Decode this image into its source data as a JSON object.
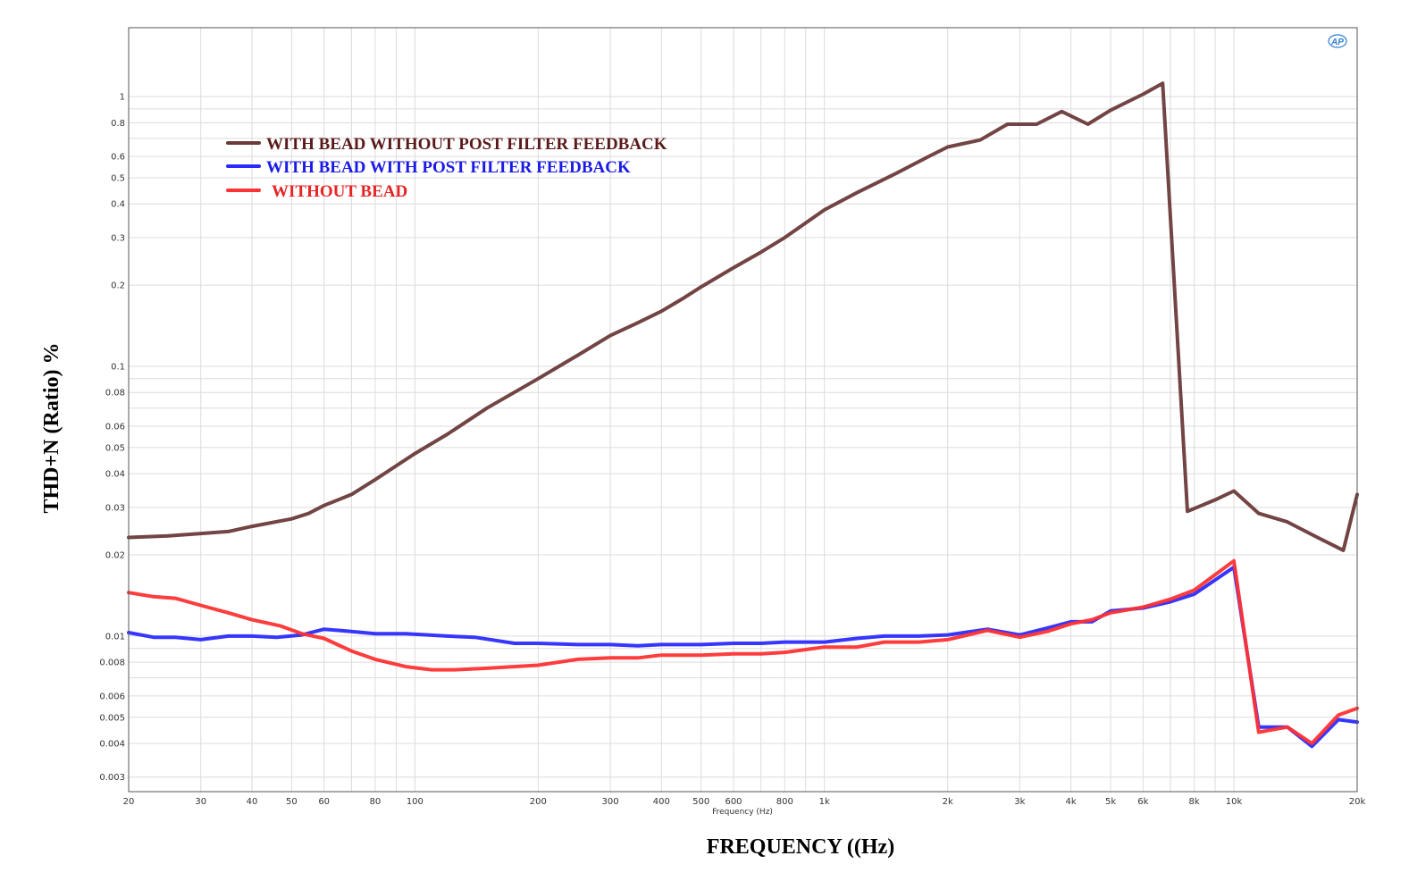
{
  "chart_data": {
    "type": "line",
    "title": "",
    "xlabel": "FREQUENCY ((Hz)",
    "x_unit_label": "Frequency (Hz)",
    "ylabel": "THD+N (Ratio) %",
    "xscale": "log",
    "yscale": "log",
    "xlim": [
      20,
      20000
    ],
    "ylim": [
      0.00265,
      1.8
    ],
    "grid": true,
    "legend_position": "top-left",
    "x_ticks": [
      {
        "value": 20,
        "label": "20"
      },
      {
        "value": 30,
        "label": "30"
      },
      {
        "value": 40,
        "label": "40"
      },
      {
        "value": 50,
        "label": "50"
      },
      {
        "value": 60,
        "label": "60"
      },
      {
        "value": 80,
        "label": "80"
      },
      {
        "value": 100,
        "label": "100"
      },
      {
        "value": 200,
        "label": "200"
      },
      {
        "value": 300,
        "label": "300"
      },
      {
        "value": 400,
        "label": "400"
      },
      {
        "value": 500,
        "label": "500"
      },
      {
        "value": 600,
        "label": "600"
      },
      {
        "value": 800,
        "label": "800"
      },
      {
        "value": 1000,
        "label": "1k"
      },
      {
        "value": 2000,
        "label": "2k"
      },
      {
        "value": 3000,
        "label": "3k"
      },
      {
        "value": 4000,
        "label": "4k"
      },
      {
        "value": 5000,
        "label": "5k"
      },
      {
        "value": 6000,
        "label": "6k"
      },
      {
        "value": 8000,
        "label": "8k"
      },
      {
        "value": 10000,
        "label": "10k"
      },
      {
        "value": 20000,
        "label": "20k"
      }
    ],
    "y_ticks": [
      {
        "value": 1,
        "label": "1"
      },
      {
        "value": 0.8,
        "label": "0.8"
      },
      {
        "value": 0.6,
        "label": "0.6"
      },
      {
        "value": 0.5,
        "label": "0.5"
      },
      {
        "value": 0.4,
        "label": "0.4"
      },
      {
        "value": 0.3,
        "label": "0.3"
      },
      {
        "value": 0.2,
        "label": "0.2"
      },
      {
        "value": 0.1,
        "label": "0.1"
      },
      {
        "value": 0.08,
        "label": "0.08"
      },
      {
        "value": 0.06,
        "label": "0.06"
      },
      {
        "value": 0.05,
        "label": "0.05"
      },
      {
        "value": 0.04,
        "label": "0.04"
      },
      {
        "value": 0.03,
        "label": "0.03"
      },
      {
        "value": 0.02,
        "label": "0.02"
      },
      {
        "value": 0.01,
        "label": "0.01"
      },
      {
        "value": 0.008,
        "label": "0.008"
      },
      {
        "value": 0.006,
        "label": "0.006"
      },
      {
        "value": 0.005,
        "label": "0.005"
      },
      {
        "value": 0.004,
        "label": "0.004"
      },
      {
        "value": 0.003,
        "label": "0.003"
      }
    ],
    "series": [
      {
        "name": "WITH BEAD WITHOUT POST FILTER FEEDBACK",
        "color": "#6b3a3a",
        "legend_color": "#5a1a1a",
        "points": [
          [
            20,
            0.0232
          ],
          [
            25,
            0.0235
          ],
          [
            30,
            0.024
          ],
          [
            35,
            0.0244
          ],
          [
            40,
            0.0255
          ],
          [
            50,
            0.0272
          ],
          [
            55,
            0.0285
          ],
          [
            60,
            0.0305
          ],
          [
            70,
            0.0335
          ],
          [
            80,
            0.038
          ],
          [
            100,
            0.0475
          ],
          [
            120,
            0.056
          ],
          [
            150,
            0.07
          ],
          [
            200,
            0.09
          ],
          [
            250,
            0.11
          ],
          [
            300,
            0.13
          ],
          [
            350,
            0.145
          ],
          [
            400,
            0.16
          ],
          [
            450,
            0.178
          ],
          [
            500,
            0.197
          ],
          [
            600,
            0.232
          ],
          [
            700,
            0.265
          ],
          [
            800,
            0.3
          ],
          [
            1000,
            0.38
          ],
          [
            1200,
            0.44
          ],
          [
            1500,
            0.52
          ],
          [
            1800,
            0.6
          ],
          [
            2000,
            0.65
          ],
          [
            2400,
            0.69
          ],
          [
            2800,
            0.79
          ],
          [
            3300,
            0.79
          ],
          [
            3800,
            0.88
          ],
          [
            4400,
            0.79
          ],
          [
            5000,
            0.89
          ],
          [
            6000,
            1.02
          ],
          [
            6700,
            1.12
          ],
          [
            7700,
            0.029
          ],
          [
            9000,
            0.032
          ],
          [
            10000,
            0.0345
          ],
          [
            11500,
            0.0285
          ],
          [
            13500,
            0.0265
          ],
          [
            16000,
            0.0232
          ],
          [
            18500,
            0.0208
          ],
          [
            20000,
            0.0335
          ]
        ]
      },
      {
        "name": "WITH BEAD WITH POST FILTER FEEDBACK",
        "color": "#2b2bff",
        "legend_color": "#1a1ae6",
        "points": [
          [
            20,
            0.0103
          ],
          [
            23,
            0.0099
          ],
          [
            26,
            0.0099
          ],
          [
            30,
            0.0097
          ],
          [
            35,
            0.01
          ],
          [
            40,
            0.01
          ],
          [
            46,
            0.0099
          ],
          [
            53,
            0.0101
          ],
          [
            60,
            0.0106
          ],
          [
            70,
            0.0104
          ],
          [
            80,
            0.0102
          ],
          [
            95,
            0.0102
          ],
          [
            120,
            0.01
          ],
          [
            140,
            0.0099
          ],
          [
            175,
            0.0094
          ],
          [
            200,
            0.0094
          ],
          [
            250,
            0.0093
          ],
          [
            300,
            0.0093
          ],
          [
            350,
            0.0092
          ],
          [
            400,
            0.0093
          ],
          [
            450,
            0.0093
          ],
          [
            500,
            0.0093
          ],
          [
            600,
            0.0094
          ],
          [
            700,
            0.0094
          ],
          [
            800,
            0.0095
          ],
          [
            900,
            0.0095
          ],
          [
            1000,
            0.0095
          ],
          [
            1200,
            0.0098
          ],
          [
            1400,
            0.01
          ],
          [
            1700,
            0.01
          ],
          [
            2000,
            0.0101
          ],
          [
            2500,
            0.0106
          ],
          [
            3000,
            0.0101
          ],
          [
            3500,
            0.0107
          ],
          [
            4000,
            0.0113
          ],
          [
            4500,
            0.0113
          ],
          [
            5000,
            0.0124
          ],
          [
            6000,
            0.0127
          ],
          [
            7000,
            0.0134
          ],
          [
            8000,
            0.0143
          ],
          [
            10000,
            0.018
          ],
          [
            11500,
            0.0046
          ],
          [
            13500,
            0.0046
          ],
          [
            15500,
            0.0039
          ],
          [
            18000,
            0.0049
          ],
          [
            20000,
            0.0048
          ]
        ]
      },
      {
        "name": "WITHOUT BEAD",
        "color": "#ff3333",
        "legend_color": "#e62424",
        "points": [
          [
            20,
            0.0145
          ],
          [
            23,
            0.014
          ],
          [
            26,
            0.0138
          ],
          [
            30,
            0.013
          ],
          [
            35,
            0.0122
          ],
          [
            40,
            0.0115
          ],
          [
            47,
            0.0109
          ],
          [
            53,
            0.0102
          ],
          [
            60,
            0.0098
          ],
          [
            70,
            0.0088
          ],
          [
            80,
            0.0082
          ],
          [
            95,
            0.0077
          ],
          [
            110,
            0.0075
          ],
          [
            125,
            0.0075
          ],
          [
            150,
            0.0076
          ],
          [
            200,
            0.0078
          ],
          [
            250,
            0.0082
          ],
          [
            300,
            0.0083
          ],
          [
            350,
            0.0083
          ],
          [
            400,
            0.0085
          ],
          [
            450,
            0.0085
          ],
          [
            500,
            0.0085
          ],
          [
            600,
            0.0086
          ],
          [
            700,
            0.0086
          ],
          [
            800,
            0.0087
          ],
          [
            1000,
            0.0091
          ],
          [
            1200,
            0.0091
          ],
          [
            1400,
            0.0095
          ],
          [
            1700,
            0.0095
          ],
          [
            2000,
            0.0097
          ],
          [
            2500,
            0.0105
          ],
          [
            3000,
            0.0099
          ],
          [
            3500,
            0.0104
          ],
          [
            4000,
            0.0111
          ],
          [
            4500,
            0.0115
          ],
          [
            5000,
            0.0122
          ],
          [
            6000,
            0.0128
          ],
          [
            7000,
            0.0137
          ],
          [
            8000,
            0.0148
          ],
          [
            10000,
            0.019
          ],
          [
            11500,
            0.0044
          ],
          [
            13500,
            0.0046
          ],
          [
            15500,
            0.004
          ],
          [
            18000,
            0.0051
          ],
          [
            20000,
            0.0054
          ]
        ]
      }
    ],
    "logo": "AP"
  }
}
